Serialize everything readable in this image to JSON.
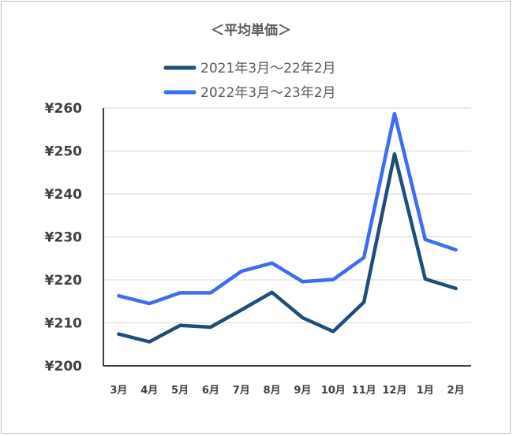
{
  "chart_data": {
    "type": "line",
    "title": "＜平均単価＞",
    "categories": [
      "3月",
      "4月",
      "5月",
      "6月",
      "7月",
      "8月",
      "9月",
      "10月",
      "11月",
      "12月",
      "1月",
      "2月"
    ],
    "ylim": [
      200,
      260
    ],
    "yticks": [
      200,
      210,
      220,
      230,
      240,
      250,
      260
    ],
    "ytick_labels": [
      "¥200",
      "¥210",
      "¥220",
      "¥230",
      "¥240",
      "¥250",
      "¥260"
    ],
    "grid": true,
    "legend_position": "top",
    "series": [
      {
        "name": "2021年3月～22年2月",
        "color": "#1f4e79",
        "values": [
          207.4,
          205.6,
          209.4,
          209.0,
          213.0,
          217.1,
          211.2,
          208.0,
          214.8,
          249.3,
          220.2,
          218.0
        ]
      },
      {
        "name": "2022年3月～23年2月",
        "color": "#3d6cf4",
        "values": [
          216.3,
          214.5,
          217.0,
          217.0,
          222.0,
          223.9,
          219.6,
          220.1,
          225.2,
          258.7,
          229.4,
          227.0
        ]
      }
    ]
  }
}
